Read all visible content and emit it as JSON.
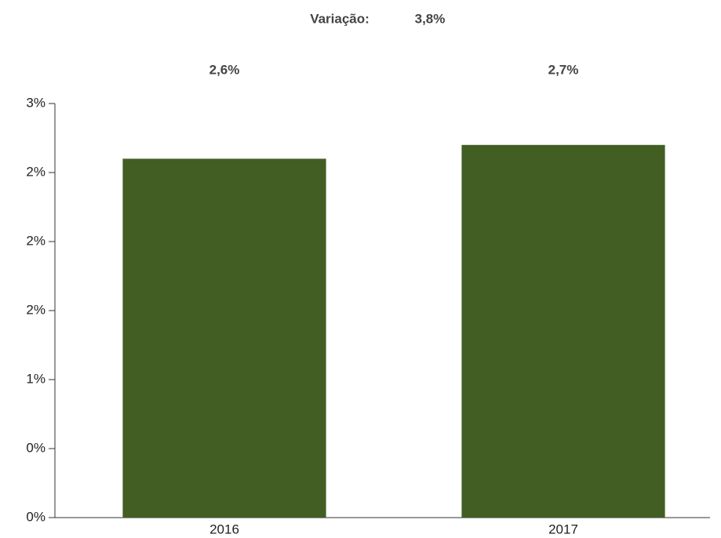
{
  "chart_data": {
    "type": "bar",
    "annotation": {
      "label": "Variação:",
      "text": "3,8%"
    },
    "categories": [
      "2016",
      "2017"
    ],
    "values": [
      2.6,
      2.7
    ],
    "value_labels": [
      "2,6%",
      "2,7%"
    ],
    "color": "#425e23",
    "ylim": [
      0,
      3
    ],
    "yticks": [
      {
        "value": 0,
        "label": "0%"
      },
      {
        "value": 0.5,
        "label": "0%"
      },
      {
        "value": 1,
        "label": "1%"
      },
      {
        "value": 1.5,
        "label": "2%"
      },
      {
        "value": 2,
        "label": "2%"
      },
      {
        "value": 2.5,
        "label": "2%"
      },
      {
        "value": 3,
        "label": "3%"
      }
    ],
    "grid": false
  }
}
